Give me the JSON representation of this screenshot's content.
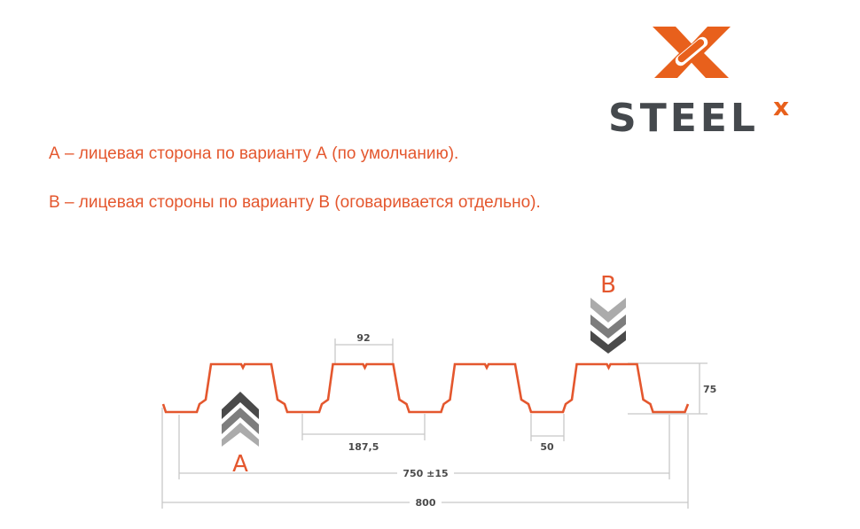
{
  "logo": {
    "text": "STEEL",
    "superscript": "x",
    "colors": {
      "orange": "#e8601c",
      "gray": "#45494d"
    }
  },
  "captions": [
    "А – лицевая сторона по варианту А (по умолчанию).",
    "В – лицевая стороны по варианту В (оговаривается отдельно)."
  ],
  "diagram": {
    "profile_color": "#e4572e",
    "side_a_label": "A",
    "side_b_label": "B",
    "dimensions": {
      "top_width": "92",
      "pitch": "187,5",
      "bottom_width": "50",
      "height": "75",
      "useful_width": "750 ±15",
      "total_width": "800"
    }
  }
}
